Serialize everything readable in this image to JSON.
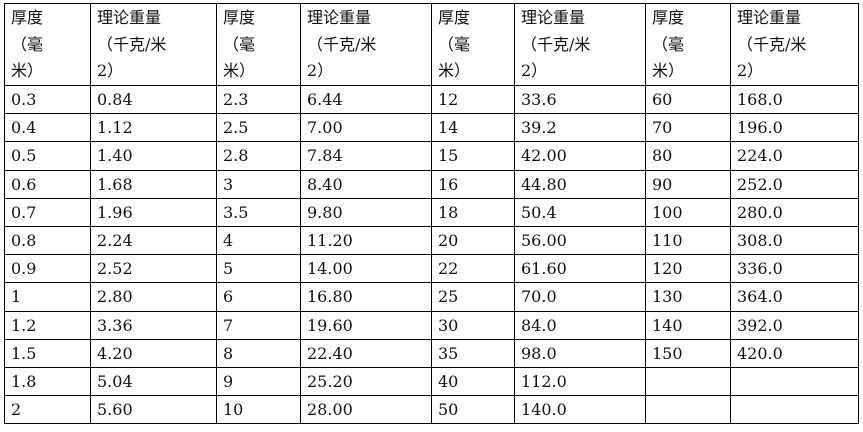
{
  "headers": [
    {
      "lines": [
        "厚度",
        "（毫",
        "米）"
      ]
    },
    {
      "lines": [
        "理论重量",
        "（千克/米",
        "2）"
      ]
    },
    {
      "lines": [
        "厚度",
        "（毫",
        "米）"
      ]
    },
    {
      "lines": [
        "理论重量",
        "（千克/米",
        "2）"
      ]
    },
    {
      "lines": [
        "厚度",
        "（毫",
        "米）"
      ]
    },
    {
      "lines": [
        "理论重量",
        "（千克/米",
        "2）"
      ]
    },
    {
      "lines": [
        "厚度",
        "（毫",
        "米）"
      ]
    },
    {
      "lines": [
        "理论重量",
        "（千克/米",
        "2）"
      ]
    }
  ],
  "rows": [
    [
      "0.3",
      "0.84",
      "2.3",
      "6.44",
      "12",
      "33.6",
      "60",
      "168.0"
    ],
    [
      "0.4",
      "1.12",
      "2.5",
      "7.00",
      "14",
      "39.2",
      "70",
      "196.0"
    ],
    [
      "0.5",
      "1.40",
      "2.8",
      "7.84",
      "15",
      "42.00",
      "80",
      "224.0"
    ],
    [
      "0.6",
      "1.68",
      "3",
      "8.40",
      "16",
      "44.80",
      "90",
      "252.0"
    ],
    [
      "0.7",
      "1.96",
      "3.5",
      "9.80",
      "18",
      "50.4",
      "100",
      "280.0"
    ],
    [
      "0.8",
      "2.24",
      "4",
      "11.20",
      "20",
      "56.00",
      "110",
      "308.0"
    ],
    [
      "0.9",
      "2.52",
      "5",
      "14.00",
      "22",
      "61.60",
      "120",
      "336.0"
    ],
    [
      "1",
      "2.80",
      "6",
      "16.80",
      "25",
      "70.0",
      "130",
      "364.0"
    ],
    [
      "1.2",
      "3.36",
      "7",
      "19.60",
      "30",
      "84.0",
      "140",
      "392.0"
    ],
    [
      "1.5",
      "4.20",
      "8",
      "22.40",
      "35",
      "98.0",
      "150",
      "420.0"
    ],
    [
      "1.8",
      "5.04",
      "9",
      "25.20",
      "40",
      "112.0",
      "",
      ""
    ],
    [
      "2",
      "5.60",
      "10",
      "28.00",
      "50",
      "140.0",
      "",
      ""
    ]
  ]
}
